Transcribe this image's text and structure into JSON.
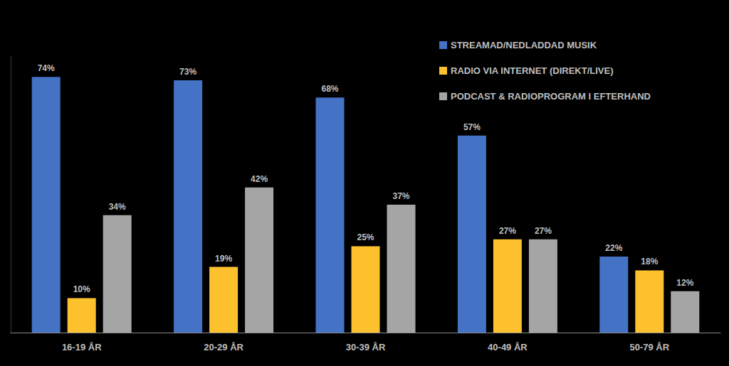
{
  "chart_data": {
    "type": "bar",
    "categories": [
      "16-19 ÅR",
      "20-29 ÅR",
      "30-39 ÅR",
      "40-49 ÅR",
      "50-79 ÅR"
    ],
    "series": [
      {
        "name": "STREAMAD/NEDLADDAD MUSIK",
        "color": "#4472c4",
        "values": [
          74,
          73,
          68,
          57,
          22
        ],
        "value_labels": [
          "74%",
          "73%",
          "68%",
          "57%",
          "22%"
        ]
      },
      {
        "name": "RADIO VIA INTERNET (DIREKT/LIVE)",
        "color": "#fdc12e",
        "values": [
          10,
          19,
          25,
          27,
          18
        ],
        "value_labels": [
          "10%",
          "19%",
          "25%",
          "27%",
          "18%"
        ]
      },
      {
        "name": "PODCAST & RADIOPROGRAM I EFTERHAND",
        "color": "#a5a5a5",
        "values": [
          34,
          42,
          37,
          27,
          12
        ],
        "value_labels": [
          "34%",
          "42%",
          "37%",
          "27%",
          "12%"
        ]
      }
    ],
    "ylim": [
      0,
      80
    ],
    "grid": false,
    "legend": "upper right",
    "data_labels": true,
    "tick_labels": "x"
  }
}
